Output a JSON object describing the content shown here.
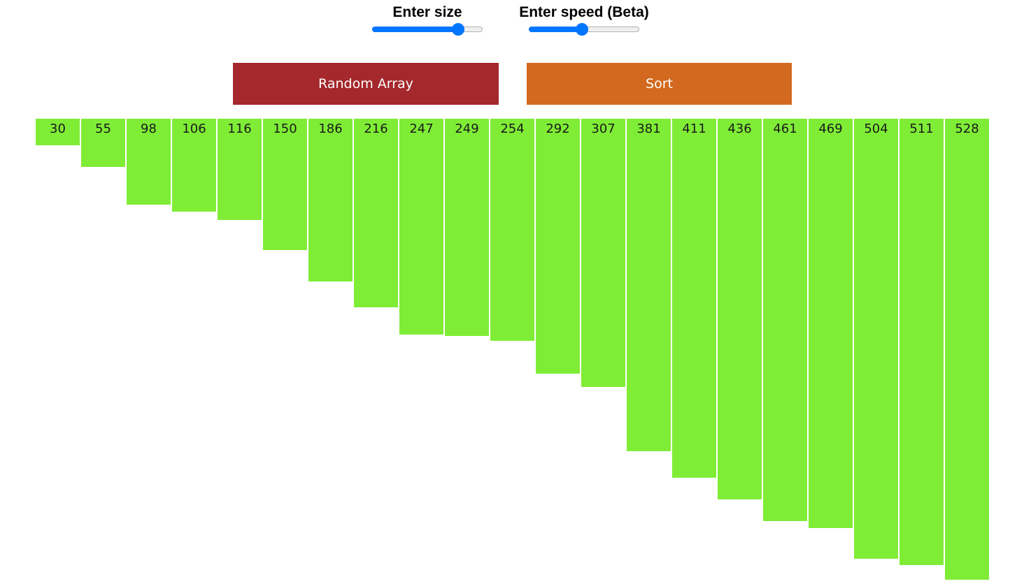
{
  "controls": {
    "size": {
      "label": "Enter size",
      "value_fraction": 0.78
    },
    "speed": {
      "label": "Enter speed (Beta)",
      "value_fraction": 0.48
    }
  },
  "buttons": {
    "random_label": "Random Array",
    "sort_label": "Sort"
  },
  "colors": {
    "accent_slider": "#0075ff",
    "random_button": "#a4282c",
    "sort_button": "#d2691e",
    "bar": "#7fed36"
  },
  "chart_data": {
    "type": "bar",
    "values": [
      30,
      55,
      98,
      106,
      116,
      150,
      186,
      216,
      247,
      249,
      254,
      292,
      307,
      381,
      411,
      436,
      461,
      469,
      504,
      511,
      528
    ],
    "orientation": "downward"
  }
}
